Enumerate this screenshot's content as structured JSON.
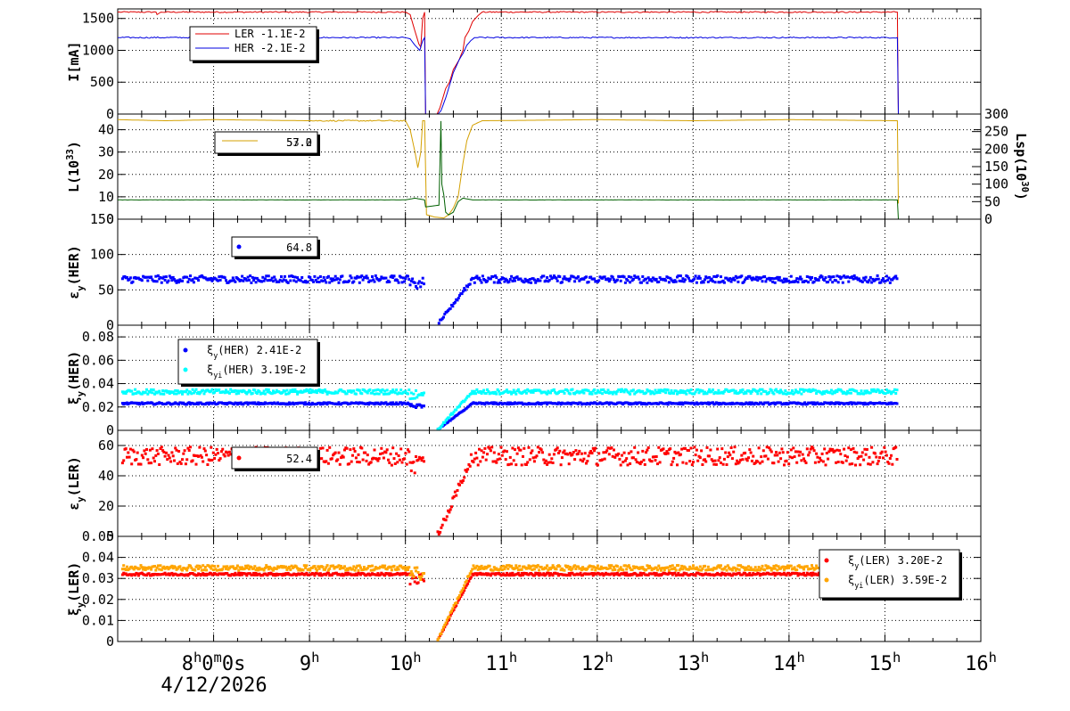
{
  "figure": {
    "date_label": "4/12/2026",
    "x_ticks": [
      {
        "h": 8,
        "text": "8",
        "sup": "h",
        "suffix": "0",
        "sup2": "m",
        "suffix2": "0s"
      },
      {
        "h": 9,
        "text": "9",
        "sup": "h"
      },
      {
        "h": 10,
        "text": "10",
        "sup": "h"
      },
      {
        "h": 11,
        "text": "11",
        "sup": "h"
      },
      {
        "h": 12,
        "text": "12",
        "sup": "h"
      },
      {
        "h": 13,
        "text": "13",
        "sup": "h"
      },
      {
        "h": 14,
        "text": "14",
        "sup": "h"
      },
      {
        "h": 15,
        "text": "15",
        "sup": "h"
      },
      {
        "h": 16,
        "text": "16",
        "sup": "h"
      }
    ]
  },
  "chart_data": [
    {
      "type": "line",
      "ylabel": "I[mA]",
      "ylim": [
        0,
        1650
      ],
      "yticks": [
        0,
        500,
        1000,
        1500
      ],
      "ytick_labels": [
        "0",
        "500",
        "1000",
        "1500"
      ],
      "series": [
        {
          "name": "LER",
          "value_label": "-1.1E-2",
          "color": "#e00000",
          "points": [
            [
              7.0,
              1600
            ],
            [
              7.4,
              1600
            ],
            [
              7.41,
              1560
            ],
            [
              7.45,
              1600
            ],
            [
              10.0,
              1600
            ],
            [
              10.05,
              1560
            ],
            [
              10.1,
              1300
            ],
            [
              10.14,
              1100
            ],
            [
              10.16,
              1050
            ],
            [
              10.18,
              1500
            ],
            [
              10.2,
              1600
            ],
            [
              10.21,
              0
            ],
            [
              10.33,
              0
            ],
            [
              10.36,
              100
            ],
            [
              10.42,
              400
            ],
            [
              10.46,
              500
            ],
            [
              10.5,
              700
            ],
            [
              10.56,
              850
            ],
            [
              10.6,
              1000
            ],
            [
              10.62,
              1200
            ],
            [
              10.66,
              1300
            ],
            [
              10.7,
              1450
            ],
            [
              10.76,
              1550
            ],
            [
              10.8,
              1600
            ],
            [
              15.13,
              1600
            ],
            [
              15.14,
              0
            ],
            [
              16.0,
              0
            ]
          ]
        },
        {
          "name": "HER",
          "value_label": "-2.1E-2",
          "color": "#0000e0",
          "points": [
            [
              7.0,
              1200
            ],
            [
              10.0,
              1200
            ],
            [
              10.05,
              1180
            ],
            [
              10.1,
              1080
            ],
            [
              10.15,
              1000
            ],
            [
              10.18,
              1150
            ],
            [
              10.2,
              1200
            ],
            [
              10.21,
              0
            ],
            [
              10.34,
              0
            ],
            [
              10.37,
              50
            ],
            [
              10.42,
              250
            ],
            [
              10.46,
              450
            ],
            [
              10.5,
              650
            ],
            [
              10.56,
              850
            ],
            [
              10.6,
              950
            ],
            [
              10.64,
              1080
            ],
            [
              10.68,
              1150
            ],
            [
              10.72,
              1200
            ],
            [
              15.13,
              1200
            ],
            [
              15.14,
              0
            ],
            [
              16.0,
              0
            ]
          ]
        }
      ]
    },
    {
      "type": "line",
      "ylabel": "L(10^33)",
      "ylabel_base": "L(10",
      "ylabel_sup": "33",
      "ylabel_end": ")",
      "ylim": [
        0,
        47
      ],
      "yticks": [
        0,
        10,
        20,
        30,
        40
      ],
      "ytick_labels": [
        "0",
        "10",
        "20",
        "30",
        "40"
      ],
      "y2label": "Lsp(10^30)",
      "y2label_base": "Lsp(10",
      "y2label_sup": "30",
      "y2label_end": ")",
      "y2lim": [
        0,
        300
      ],
      "y2ticks": [
        0,
        50,
        100,
        150,
        200,
        250,
        300
      ],
      "y2tick_labels": [
        "0",
        "50",
        "100",
        "150",
        "200",
        "250",
        "300"
      ],
      "legend_value_a": "57.0",
      "legend_value_b": "53.2",
      "series": [
        {
          "name": "L",
          "color": "#d4a000",
          "points": [
            [
              7.0,
              44.5
            ],
            [
              7.5,
              44
            ],
            [
              8.0,
              44.5
            ],
            [
              9.0,
              44
            ],
            [
              10.0,
              44
            ],
            [
              10.05,
              40
            ],
            [
              10.1,
              30
            ],
            [
              10.13,
              23
            ],
            [
              10.16,
              30
            ],
            [
              10.18,
              44
            ],
            [
              10.2,
              44
            ],
            [
              10.22,
              2
            ],
            [
              10.3,
              1
            ],
            [
              10.4,
              0.5
            ],
            [
              10.45,
              2
            ],
            [
              10.5,
              5
            ],
            [
              10.55,
              10
            ],
            [
              10.6,
              25
            ],
            [
              10.64,
              35
            ],
            [
              10.7,
              42
            ],
            [
              10.8,
              44
            ],
            [
              12.0,
              44.5
            ],
            [
              13.0,
              44
            ],
            [
              14.0,
              44.5
            ],
            [
              15.13,
              44
            ],
            [
              15.14,
              7
            ]
          ]
        },
        {
          "name": "Lsp",
          "color": "#006000",
          "axis": "y2",
          "points": [
            [
              7.0,
              55
            ],
            [
              9.0,
              55
            ],
            [
              10.0,
              55
            ],
            [
              10.1,
              60
            ],
            [
              10.2,
              55
            ],
            [
              10.21,
              35
            ],
            [
              10.35,
              40
            ],
            [
              10.37,
              280
            ],
            [
              10.38,
              100
            ],
            [
              10.4,
              70
            ],
            [
              10.42,
              20
            ],
            [
              10.45,
              12
            ],
            [
              10.5,
              20
            ],
            [
              10.55,
              50
            ],
            [
              10.6,
              60
            ],
            [
              10.7,
              55
            ],
            [
              15.13,
              55
            ],
            [
              15.14,
              0
            ]
          ]
        }
      ]
    },
    {
      "type": "scatter",
      "ylabel": "εy(HER)",
      "ylabel_base": "ε",
      "ylabel_sub": "y",
      "ylabel_end": "(HER)",
      "ylim": [
        0,
        150
      ],
      "yticks": [
        0,
        50,
        100,
        150
      ],
      "ytick_labels": [
        "0",
        "50",
        "100",
        "150"
      ],
      "legend_value": "64.8",
      "series": [
        {
          "color": "#0000ff",
          "base": 65,
          "noise": 5,
          "gap": [
            10.2,
            10.33
          ]
        }
      ]
    },
    {
      "type": "scatter",
      "ylabel": "ξy(HER)",
      "ylabel_base": "ξ",
      "ylabel_sub": "y",
      "ylabel_end": "(HER)",
      "ylim": [
        0,
        0.09
      ],
      "yticks": [
        0,
        0.02,
        0.04,
        0.06,
        0.08
      ],
      "ytick_labels": [
        "0",
        "0.02",
        "0.04",
        "0.06",
        "0.08"
      ],
      "series": [
        {
          "name": "ξy(HER)",
          "name_base": "ξ",
          "name_sub": "y",
          "name_end": "(HER)",
          "value_label": "2.41E-2",
          "color": "#0000ff",
          "base": 0.023,
          "noise": 0.0008
        },
        {
          "name": "ξyi(HER)",
          "name_base": "ξ",
          "name_sub": "yi",
          "name_end": "(HER)",
          "value_label": "3.19E-2",
          "color": "#00ffff",
          "base": 0.033,
          "noise": 0.002
        }
      ]
    },
    {
      "type": "scatter",
      "ylabel": "εy(LER)",
      "ylabel_base": "ε",
      "ylabel_sub": "y",
      "ylabel_end": "(LER)",
      "ylim": [
        0,
        70
      ],
      "yticks": [
        0,
        20,
        40,
        60
      ],
      "ytick_labels": [
        "0",
        "20",
        "40",
        "60"
      ],
      "legend_value": "52.4",
      "series": [
        {
          "color": "#ff0000",
          "base": 53,
          "noise": 6
        }
      ]
    },
    {
      "type": "scatter",
      "ylabel": "ξy(LER)",
      "ylabel_base": "ξ",
      "ylabel_sub": "y",
      "ylabel_end": "(LER)",
      "ylim": [
        0,
        0.05
      ],
      "yticks": [
        0,
        0.01,
        0.02,
        0.03,
        0.04,
        0.05
      ],
      "ytick_labels": [
        "0",
        "0.01",
        "0.02",
        "0.03",
        "0.04",
        "0.05"
      ],
      "series": [
        {
          "name": "ξy(LER)",
          "name_base": "ξ",
          "name_sub": "y",
          "name_end": "(LER)",
          "value_label": "3.20E-2",
          "color": "#ff0000",
          "base": 0.032,
          "noise": 0.0006
        },
        {
          "name": "ξyi(LER)",
          "name_base": "ξ",
          "name_sub": "yi",
          "name_end": "(LER)",
          "value_label": "3.59E-2",
          "color": "#ffa500",
          "base": 0.035,
          "noise": 0.0012
        }
      ]
    }
  ]
}
